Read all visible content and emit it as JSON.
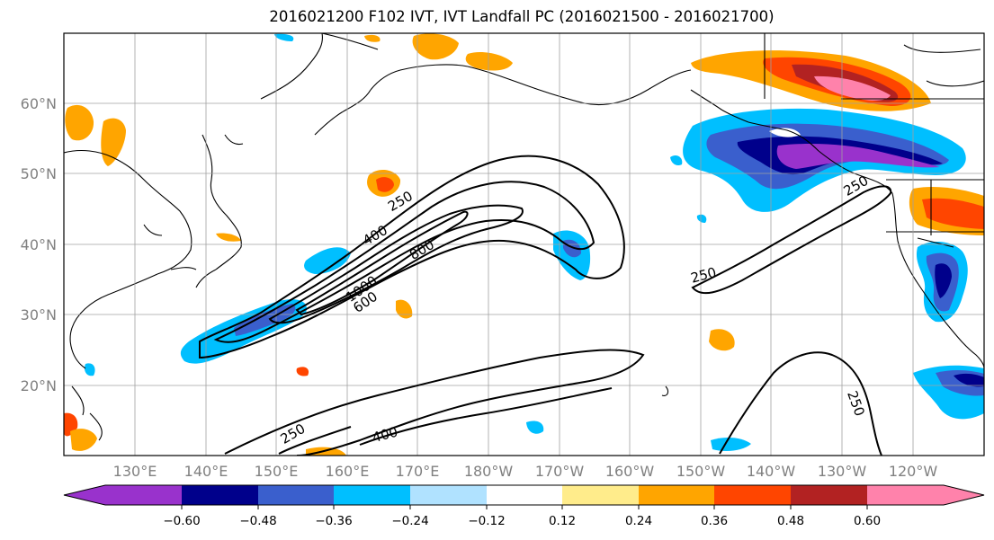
{
  "title": "2016021200 F102 IVT, IVT Landfall PC (2016021500 - 2016021700)",
  "map": {
    "lat_labels": [
      "60°N",
      "50°N",
      "40°N",
      "30°N",
      "20°N"
    ],
    "lon_labels": [
      "130°E",
      "140°E",
      "150°E",
      "160°E",
      "170°E",
      "180°W",
      "170°W",
      "160°W",
      "150°W",
      "140°W",
      "130°W",
      "120°W"
    ],
    "contour_labels": [
      "250",
      "400",
      "800",
      "1000",
      "600",
      "250",
      "250",
      "400",
      "250",
      "250"
    ],
    "tick_color": "#808080",
    "grid_color": "#a0a0a0"
  },
  "colorbar": {
    "tick_labels": [
      "−0.60",
      "−0.48",
      "−0.36",
      "−0.24",
      "−0.12",
      "0.12",
      "0.24",
      "0.36",
      "0.48",
      "0.60"
    ],
    "colors": [
      "#9932cc",
      "#00008b",
      "#3a5fcd",
      "#00bfff",
      "#b0e2ff",
      "#ffffff",
      "#ffec8b",
      "#ffa500",
      "#ff4500",
      "#b22222",
      "#ff82ab"
    ]
  }
}
